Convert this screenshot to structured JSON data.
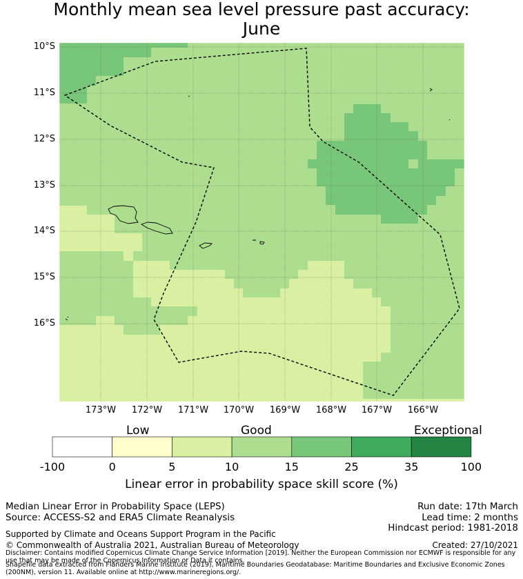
{
  "title_line1": "Monthly mean sea level pressure past accuracy:",
  "title_line2": "June",
  "map": {
    "lat_labels": [
      "10°S",
      "11°S",
      "12°S",
      "13°S",
      "14°S",
      "15°S",
      "16°S"
    ],
    "lon_labels": [
      "173°W",
      "172°W",
      "171°W",
      "170°W",
      "169°W",
      "168°W",
      "167°W",
      "166°W"
    ]
  },
  "colorbar": {
    "categories": {
      "low": "Low",
      "good": "Good",
      "exceptional": "Exceptional"
    },
    "ticks": [
      "-100",
      "0",
      "5",
      "10",
      "15",
      "25",
      "35",
      "100"
    ],
    "colors": [
      "#ffffff",
      "#ffffcc",
      "#d9f0a3",
      "#addd8e",
      "#78c679",
      "#41ab5d",
      "#238443"
    ],
    "label": "Linear error in probability space skill score (%)"
  },
  "info": {
    "left_line1": "Median Linear Error in Probability Space (LEPS)",
    "left_line2": "Source: ACCESS-S2 and ERA5 Climate Reanalysis",
    "run_date": "Run date: 17th March",
    "lead_time": "Lead time: 2 months",
    "hindcast": "Hindcast period: 1981-2018",
    "support": "Supported by Climate and Oceans Support Program in the Pacific",
    "copyright": "© Commonwealth of Australia 2021, Australian Bureau of Meteorology",
    "created": "Created: 27/10/2021",
    "disclaimer": "Disclaimer: Contains modified Copernicus Climate Change Service Information [2019]. Neither the European Commission nor ECMWF is responsible for any use that may be made of the Copernicus Information or Data it contains.",
    "shapefile": "Shapefile data extracted from Flanders Marine Institute (2019), Maritime Boundaries Geodatabase: Maritime Boundaries and Exclusive Economic Zones (200NM), version 11. Available online at http://www.marineregions.org/."
  }
}
